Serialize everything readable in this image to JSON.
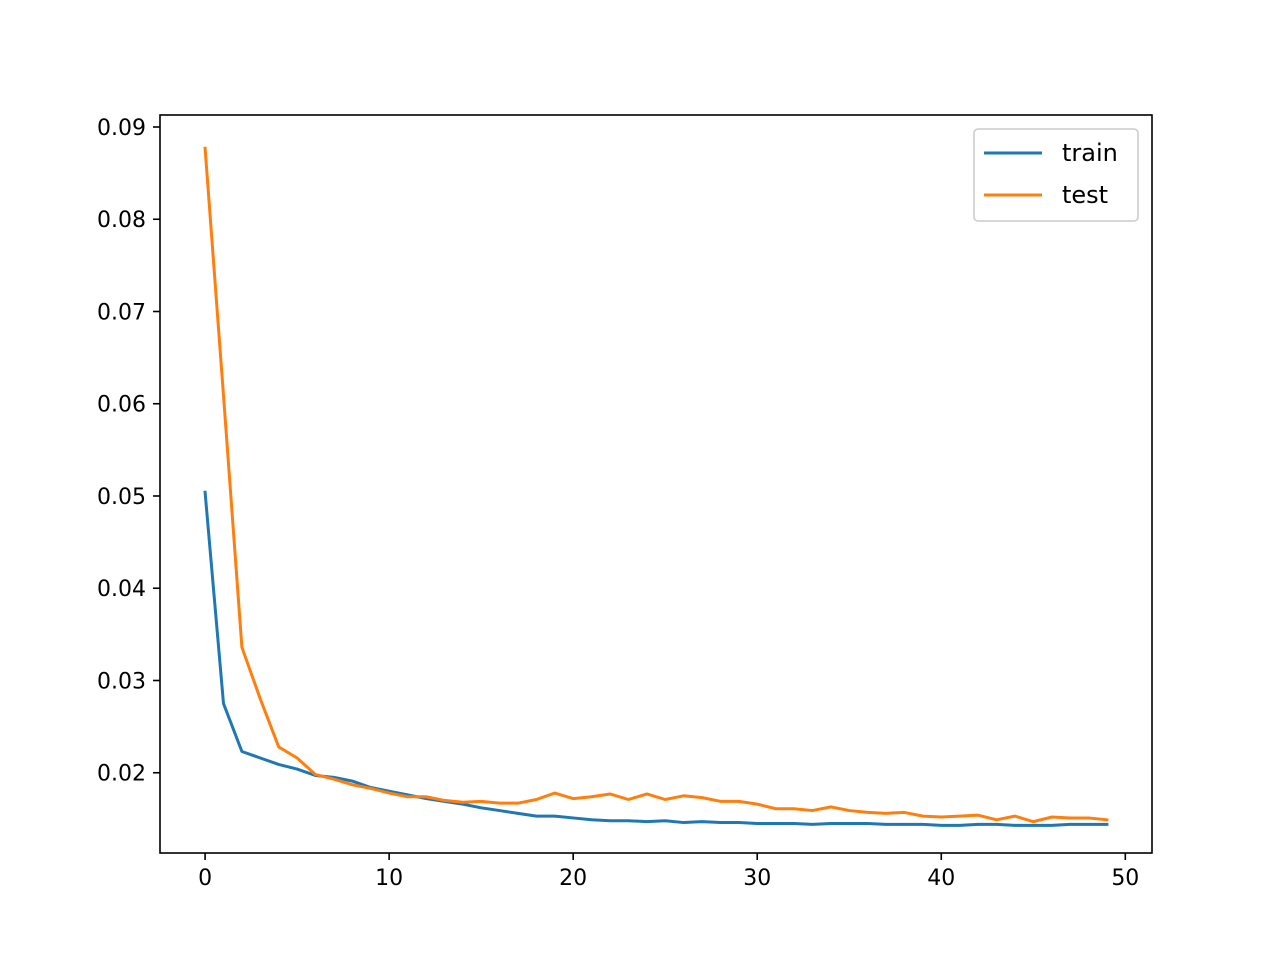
{
  "chart_data": {
    "type": "line",
    "title": "",
    "xlabel": "",
    "ylabel": "",
    "xlim": [
      -2.45,
      51.45
    ],
    "ylim": [
      0.0113,
      0.0913
    ],
    "x_ticks": [
      0,
      10,
      20,
      30,
      40,
      50
    ],
    "x_tick_labels": [
      "0",
      "10",
      "20",
      "30",
      "40",
      "50"
    ],
    "y_ticks": [
      0.02,
      0.03,
      0.04,
      0.05,
      0.06,
      0.07,
      0.08,
      0.09
    ],
    "y_tick_labels": [
      "0.02",
      "0.03",
      "0.04",
      "0.05",
      "0.06",
      "0.07",
      "0.08",
      "0.09"
    ],
    "grid": false,
    "legend_position": "top-right",
    "x": [
      0,
      1,
      2,
      3,
      4,
      5,
      6,
      7,
      8,
      9,
      10,
      11,
      12,
      13,
      14,
      15,
      16,
      17,
      18,
      19,
      20,
      21,
      22,
      23,
      24,
      25,
      26,
      27,
      28,
      29,
      30,
      31,
      32,
      33,
      34,
      35,
      36,
      37,
      38,
      39,
      40,
      41,
      42,
      43,
      44,
      45,
      46,
      47,
      48,
      49
    ],
    "series": [
      {
        "name": "train",
        "color": "#1f77b4",
        "values": [
          0.0504,
          0.0275,
          0.0223,
          0.0216,
          0.0209,
          0.0204,
          0.0197,
          0.0195,
          0.0191,
          0.0184,
          0.018,
          0.0176,
          0.0172,
          0.0169,
          0.0166,
          0.0162,
          0.0159,
          0.0156,
          0.0153,
          0.0153,
          0.0151,
          0.0149,
          0.0148,
          0.0148,
          0.0147,
          0.0148,
          0.0146,
          0.0147,
          0.0146,
          0.0146,
          0.0145,
          0.0145,
          0.0145,
          0.0144,
          0.0145,
          0.0145,
          0.0145,
          0.0144,
          0.0144,
          0.0144,
          0.0143,
          0.0143,
          0.0144,
          0.0144,
          0.0143,
          0.0143,
          0.0143,
          0.0144,
          0.0144,
          0.0144
        ]
      },
      {
        "name": "test",
        "color": "#ff7f0e",
        "values": [
          0.0877,
          0.0609,
          0.0336,
          0.028,
          0.0228,
          0.0216,
          0.0198,
          0.0193,
          0.0187,
          0.0183,
          0.0178,
          0.0174,
          0.0174,
          0.017,
          0.0168,
          0.0169,
          0.0167,
          0.0167,
          0.0171,
          0.0178,
          0.0172,
          0.0174,
          0.0177,
          0.0171,
          0.0177,
          0.0171,
          0.0175,
          0.0173,
          0.0169,
          0.0169,
          0.0166,
          0.0161,
          0.0161,
          0.0159,
          0.0163,
          0.0159,
          0.0157,
          0.0156,
          0.0157,
          0.0153,
          0.0152,
          0.0153,
          0.0154,
          0.0149,
          0.0153,
          0.0147,
          0.0152,
          0.0151,
          0.0151,
          0.0149
        ]
      }
    ]
  }
}
